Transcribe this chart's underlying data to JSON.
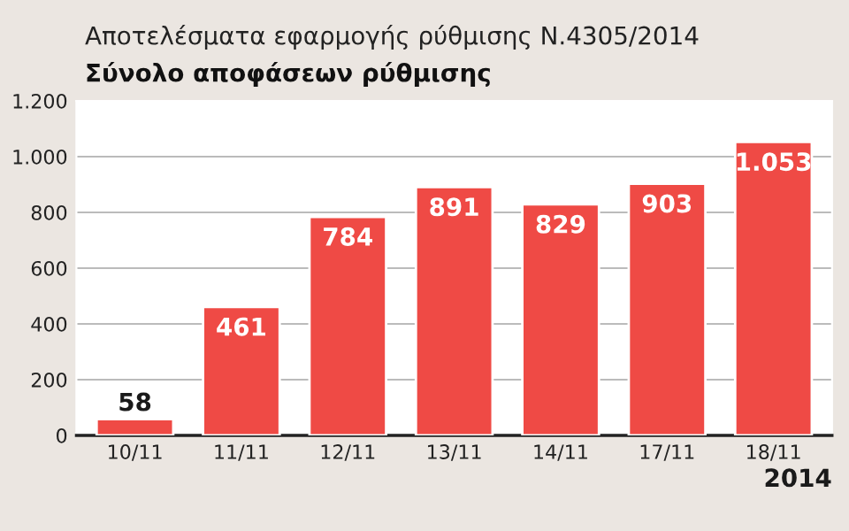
{
  "chart_data": {
    "type": "bar",
    "title": "Αποτελέσματα εφαρμογής ρύθμισης Ν.4305/2014",
    "subtitle": "Σύνολο αποφάσεων ρύθμισης",
    "xlabel": "2014",
    "categories": [
      "10/11",
      "11/11",
      "12/11",
      "13/11",
      "14/11",
      "17/11",
      "18/11"
    ],
    "values": [
      58,
      461,
      784,
      891,
      829,
      903,
      1053
    ],
    "value_labels": [
      "58",
      "461",
      "784",
      "891",
      "829",
      "903",
      "1.053"
    ],
    "color": "#ef4a45",
    "ylim": [
      0,
      1200
    ],
    "yticks": [
      0,
      200,
      400,
      600,
      800,
      {
        "value": 1000,
        "label": "1.000"
      },
      {
        "value": 1200,
        "label": "1.200"
      }
    ],
    "grid": "y"
  }
}
